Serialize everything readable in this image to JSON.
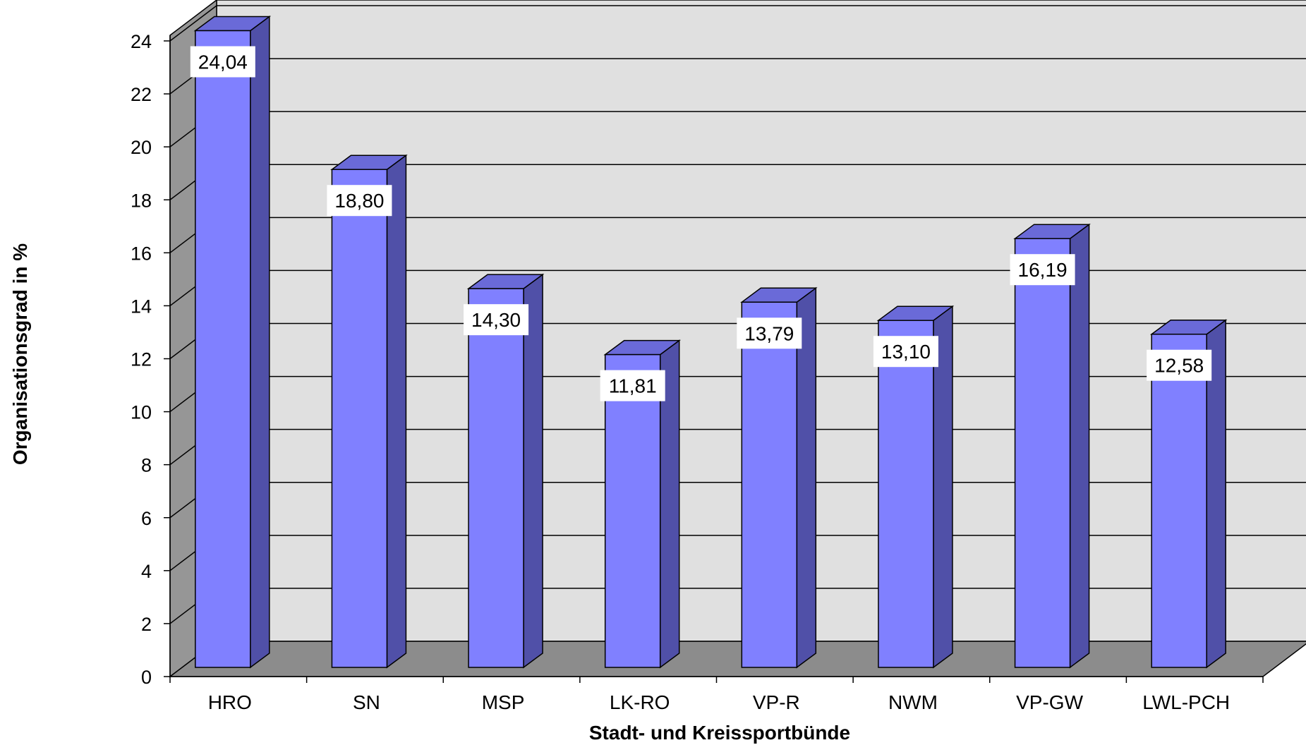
{
  "chart_data": {
    "type": "bar",
    "style": "3d-column",
    "categories": [
      "HRO",
      "SN",
      "MSP",
      "LK-RO",
      "VP-R",
      "NWM",
      "VP-GW",
      "LWL-PCH"
    ],
    "values": [
      24.04,
      18.8,
      14.3,
      11.81,
      13.79,
      13.1,
      16.19,
      12.58
    ],
    "data_labels": [
      "24,04",
      "18,80",
      "14,30",
      "11,81",
      "13,79",
      "13,10",
      "16,19",
      "12,58"
    ],
    "y_ticks": [
      "0",
      "2",
      "4",
      "6",
      "8",
      "10",
      "12",
      "14",
      "16",
      "18",
      "20",
      "22",
      "24"
    ],
    "ylim": [
      0,
      24
    ],
    "xlabel": "Stadt- und Kreissportbünde",
    "ylabel": "Organisationsgrad in %",
    "grid": true,
    "legend": "none",
    "colors": {
      "bar_front": "#8080ff",
      "bar_side": "#5050a8",
      "bar_top": "#6a6ad8",
      "back_wall": "#e0e0e0",
      "side_wall": "#969696",
      "floor": "#8c8c8c",
      "grid": "#000000"
    }
  }
}
